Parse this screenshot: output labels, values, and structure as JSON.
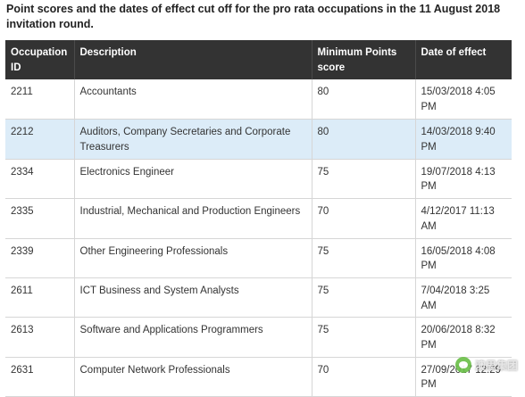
{
  "intro": "Point scores and the dates of effect cut off for the pro rata occupations in the 11 August 2018 invitation round.",
  "table": {
    "headers": [
      "Occupation ID",
      "Description",
      "Minimum Points score",
      "Date of effect"
    ],
    "rows": [
      {
        "id": "2211",
        "description": "Accountants",
        "points": "80",
        "date": "15/03/2018 4:05 PM"
      },
      {
        "id": "2212",
        "description": "Auditors, Company Secretaries and Corporate Treasurers",
        "points": "80",
        "date": "14/03/2018 9:40 PM"
      },
      {
        "id": "2334",
        "description": "Electronics Engineer",
        "points": "75",
        "date": "19/07/2018 4:13 PM"
      },
      {
        "id": "2335",
        "description": "Industrial, Mechanical and Production Engineers",
        "points": "70",
        "date": "4/12/2017 11:13 AM"
      },
      {
        "id": "2339",
        "description": "Other Engineering Professionals",
        "points": "75",
        "date": "16/05/2018 4:08 PM"
      },
      {
        "id": "2611",
        "description": "ICT Business and System Analysts",
        "points": "75",
        "date": "7/04/2018 3:25 AM"
      },
      {
        "id": "2613",
        "description": "Software and Applications Programmers",
        "points": "75",
        "date": "20/06/2018 8:32 PM"
      },
      {
        "id": "2631",
        "description": "Computer Network Professionals",
        "points": "70",
        "date": "27/09/2017 12:29 PM"
      }
    ]
  },
  "watermark": {
    "text": "澳思集团",
    "icon": "wechat-icon"
  }
}
